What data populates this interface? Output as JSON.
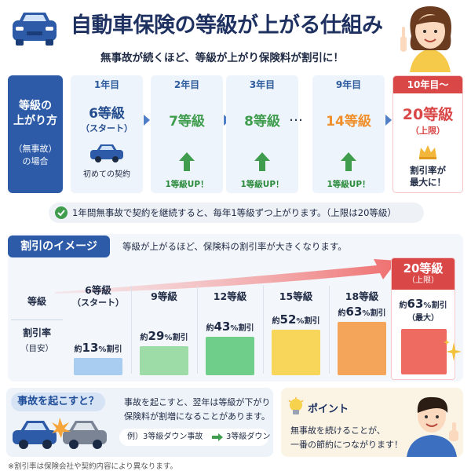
{
  "header": {
    "title": "自動車保険の等級が上がる仕組み",
    "subtitle": "無事故が続くほど、等級が上がり保険料が割引に！"
  },
  "progression": {
    "label_main": "等級の\n上がり方",
    "label_sub": "（無事故）\nの場合",
    "steps": [
      {
        "year": "1年目",
        "grade": "6等級",
        "note": "（スタート）",
        "foot": "初めての契約"
      },
      {
        "year": "2年目",
        "grade": "7等級",
        "up": "1等級UP！"
      },
      {
        "year": "3年目",
        "grade": "8等級",
        "up": "1等級UP！"
      },
      {
        "year": "9年目",
        "grade": "14等級",
        "up": "1等級UP！"
      }
    ],
    "dots": "…",
    "final": {
      "year": "10年目〜",
      "grade": "20等級",
      "note": "（上限）",
      "max_text": "割引率が\n最大に！"
    },
    "note": "1年間無事故で契約を継続すると、毎年1等級ずつ上がります。（上限は20等級）"
  },
  "discount": {
    "label": "割引のイメージ",
    "description": "等級が上がるほど、保険料の割引率が大きくなります。",
    "row_grade": "等級",
    "row_rate": "割引率",
    "row_rate_sub": "（目安）",
    "prefix": "約",
    "suffix": "%割引",
    "columns": [
      {
        "grade": "6等級",
        "sub": "（スタート）",
        "rate": "13",
        "value": 13,
        "color": "#a9cdf0"
      },
      {
        "grade": "9等級",
        "sub": "",
        "rate": "29",
        "value": 29,
        "color": "#9ddba7"
      },
      {
        "grade": "12等級",
        "sub": "",
        "rate": "43",
        "value": 43,
        "color": "#6fcf8a"
      },
      {
        "grade": "15等級",
        "sub": "",
        "rate": "52",
        "value": 52,
        "color": "#f7d65a"
      },
      {
        "grade": "18等級",
        "sub": "",
        "rate": "63",
        "value": 63,
        "color": "#f5a55a"
      }
    ],
    "final": {
      "grade": "20等級",
      "sub": "（上限）",
      "rate_text": "約63%割引",
      "rate": "63",
      "note": "（最大）"
    }
  },
  "accident": {
    "label": "事故を起こすと？",
    "line1": "事故を起こすと、翌年は等級が下がり",
    "line2": "保険料が割増になることがあります。",
    "example_left": "例）3等級ダウン事故",
    "example_right": "3等級ダウン"
  },
  "point": {
    "label": "ポイント",
    "line1": "無事故を続けることが、",
    "line2": "一番の節約につながります！"
  },
  "footnote": "※割引率は保険会社や契約内容により異なります。",
  "colors": {
    "navy": "#2d5ba8",
    "red": "#d94747",
    "green": "#3f9d4d"
  }
}
